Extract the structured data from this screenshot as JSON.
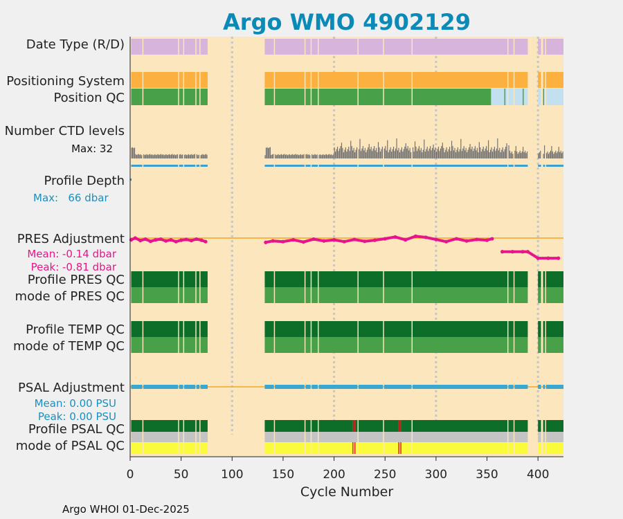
{
  "chart_data": {
    "type": "bar",
    "title": "Argo WMO 4902129",
    "xlabel": "Cycle Number",
    "xlim": [
      0,
      425
    ],
    "xticks": [
      "0",
      "50",
      "100",
      "150",
      "200",
      "250",
      "300",
      "350",
      "400"
    ],
    "tick_values": [
      0,
      50,
      100,
      150,
      200,
      250,
      300,
      350,
      400
    ],
    "gridlines": [
      100,
      200,
      300,
      400
    ],
    "gap": [
      75,
      132
    ],
    "missing_cycles": [
      12,
      47,
      52,
      64,
      68,
      141,
      171,
      177,
      184,
      223,
      248,
      276,
      370,
      376,
      390,
      391,
      392,
      393,
      394,
      395,
      396,
      397,
      398,
      399,
      403,
      404,
      407
    ],
    "rows": {
      "date_type": {
        "label": "Date Type (R/D)",
        "color": "#d6b4db"
      },
      "positioning": {
        "label": "Positioning System",
        "color": "#fbb040"
      },
      "position_qc": {
        "label": "Position QC",
        "good_color": "#48a048",
        "late_color": "#c2e0ef",
        "late_start": 354,
        "late_marks": [
          367,
          385,
          405
        ]
      },
      "ctd": {
        "label": "Number CTD levels",
        "max_label": "Max: 32",
        "color": "#707070",
        "line_color": "#3a9ecf"
      },
      "depth": {
        "label": "Profile Depth",
        "max_label": "Max:   66 dbar",
        "color": "#1a8ec0"
      },
      "pres_adj": {
        "label": "PRES Adjustment",
        "mean": "Mean: -0.14 dbar",
        "peak": "Peak: -0.81 dbar",
        "color": "#e8148c",
        "line_color": "#f5a623"
      },
      "pres_qc": {
        "label1": "Profile PRES QC",
        "label2": "mode of PRES QC",
        "dark": "#0d6e2a",
        "light": "#48a048"
      },
      "temp_qc": {
        "label1": "Profile TEMP QC",
        "label2": "mode of TEMP QC",
        "dark": "#0d6e2a",
        "light": "#48a048"
      },
      "psal_adj": {
        "label": "PSAL Adjustment",
        "mean": "Mean: 0.00 PSU",
        "peak": "Peak: 0.00 PSU",
        "color": "#38a8d0",
        "line_color": "#f5a623"
      },
      "psal_qc": {
        "label1": "Profile PSAL QC",
        "label2": "mode of PSAL QC",
        "dark": "#0d6e2a",
        "gray": "#c4c4c4",
        "yellow": "#fbfb3e",
        "red": "#e02020",
        "red_cycles": [
          218,
          220,
          263,
          265
        ]
      }
    },
    "series": [
      {
        "name": "PRES Adjustment",
        "unit": "dbar",
        "x": [
          1,
          5,
          10,
          15,
          20,
          25,
          30,
          35,
          40,
          45,
          50,
          55,
          60,
          65,
          70,
          74,
          133,
          140,
          150,
          160,
          170,
          180,
          190,
          200,
          210,
          220,
          230,
          240,
          250,
          260,
          270,
          280,
          290,
          300,
          310,
          320,
          330,
          340,
          350,
          355,
          365,
          375,
          385,
          390,
          400,
          410,
          420
        ],
        "values": [
          -0.05,
          0.0,
          -0.07,
          -0.03,
          -0.09,
          -0.05,
          -0.03,
          -0.08,
          -0.05,
          -0.1,
          -0.06,
          -0.04,
          -0.07,
          -0.03,
          -0.06,
          -0.1,
          -0.12,
          -0.08,
          -0.1,
          -0.05,
          -0.11,
          -0.03,
          -0.08,
          -0.05,
          -0.1,
          -0.04,
          -0.09,
          -0.06,
          -0.02,
          0.03,
          -0.05,
          0.05,
          0.02,
          -0.04,
          -0.1,
          -0.02,
          -0.08,
          -0.04,
          -0.06,
          -0.02,
          -0.38,
          -0.38,
          -0.38,
          -0.38,
          -0.56,
          -0.56,
          -0.56
        ]
      }
    ]
  },
  "footer": "Argo WHOI 01-Dec-2025"
}
